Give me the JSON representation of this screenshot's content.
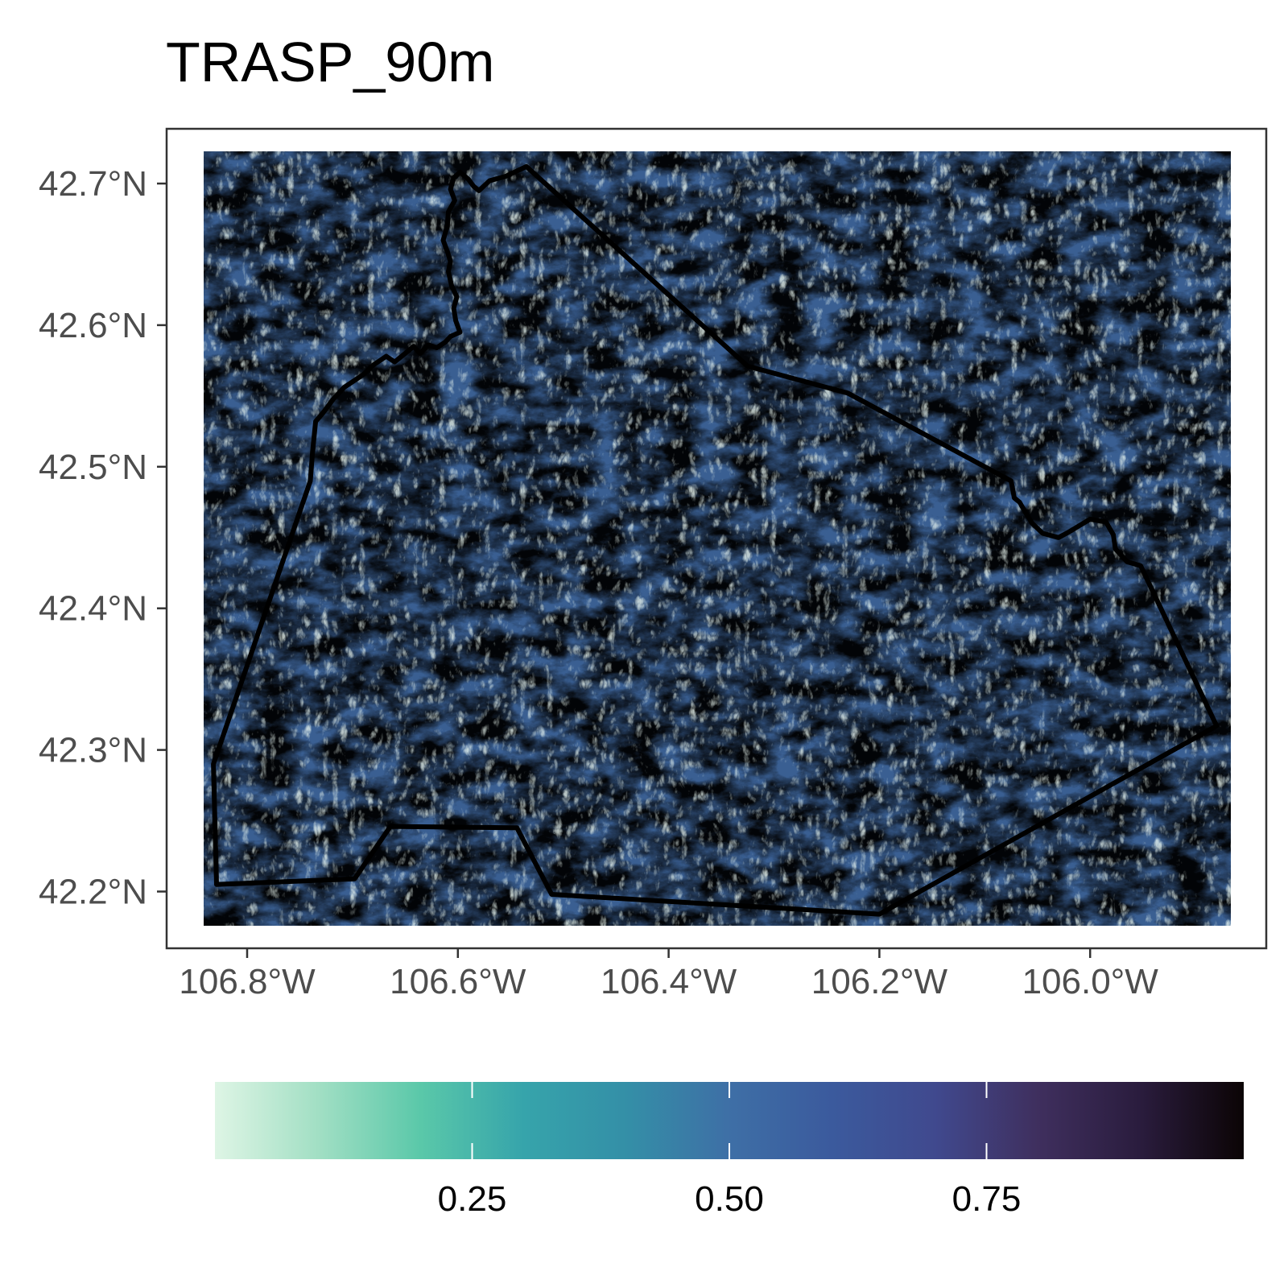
{
  "title": "TRASP_90m",
  "map": {
    "x_ticks": [
      {
        "value": -106.8,
        "label": "106.8°W"
      },
      {
        "value": -106.6,
        "label": "106.6°W"
      },
      {
        "value": -106.4,
        "label": "106.4°W"
      },
      {
        "value": -106.2,
        "label": "106.2°W"
      },
      {
        "value": -106.0,
        "label": "106.0°W"
      }
    ],
    "y_ticks": [
      {
        "value": 42.7,
        "label": "42.7°N"
      },
      {
        "value": 42.6,
        "label": "42.6°N"
      },
      {
        "value": 42.5,
        "label": "42.5°N"
      },
      {
        "value": 42.4,
        "label": "42.4°N"
      },
      {
        "value": 42.3,
        "label": "42.3°N"
      },
      {
        "value": 42.2,
        "label": "42.2°N"
      }
    ],
    "lon_range": [
      -106.84,
      -105.87
    ],
    "lat_range": [
      42.18,
      42.725
    ],
    "boundary_color": "#000000",
    "boundary": [
      [
        -106.535,
        42.712
      ],
      [
        -106.555,
        42.705
      ],
      [
        -106.57,
        42.702
      ],
      [
        -106.58,
        42.695
      ],
      [
        -106.585,
        42.698
      ],
      [
        -106.59,
        42.703
      ],
      [
        -106.598,
        42.708
      ],
      [
        -106.604,
        42.704
      ],
      [
        -106.607,
        42.696
      ],
      [
        -106.603,
        42.688
      ],
      [
        -106.609,
        42.68
      ],
      [
        -106.61,
        42.67
      ],
      [
        -106.614,
        42.66
      ],
      [
        -106.61,
        42.652
      ],
      [
        -106.607,
        42.645
      ],
      [
        -106.609,
        42.638
      ],
      [
        -106.606,
        42.628
      ],
      [
        -106.601,
        42.62
      ],
      [
        -106.604,
        42.612
      ],
      [
        -106.602,
        42.603
      ],
      [
        -106.598,
        42.595
      ],
      [
        -106.607,
        42.592
      ],
      [
        -106.612,
        42.588
      ],
      [
        -106.62,
        42.584
      ],
      [
        -106.628,
        42.586
      ],
      [
        -106.636,
        42.58
      ],
      [
        -106.642,
        42.585
      ],
      [
        -106.65,
        42.58
      ],
      [
        -106.66,
        42.574
      ],
      [
        -106.668,
        42.578
      ],
      [
        -106.68,
        42.572
      ],
      [
        -106.69,
        42.565
      ],
      [
        -106.7,
        42.56
      ],
      [
        -106.708,
        42.556
      ],
      [
        -106.718,
        42.548
      ],
      [
        -106.728,
        42.538
      ],
      [
        -106.735,
        42.532
      ],
      [
        -106.738,
        42.51
      ],
      [
        -106.74,
        42.49
      ],
      [
        -106.832,
        42.29
      ],
      [
        -106.829,
        42.205
      ],
      [
        -106.698,
        42.209
      ],
      [
        -106.664,
        42.246
      ],
      [
        -106.544,
        42.245
      ],
      [
        -106.511,
        42.198
      ],
      [
        -106.2,
        42.184
      ],
      [
        -105.88,
        42.317
      ],
      [
        -105.952,
        42.43
      ],
      [
        -105.965,
        42.433
      ],
      [
        -105.976,
        42.442
      ],
      [
        -105.978,
        42.452
      ],
      [
        -105.985,
        42.461
      ],
      [
        -106.0,
        42.463
      ],
      [
        -106.02,
        42.454
      ],
      [
        -106.03,
        42.45
      ],
      [
        -106.045,
        42.453
      ],
      [
        -106.055,
        42.46
      ],
      [
        -106.06,
        42.466
      ],
      [
        -106.067,
        42.475
      ],
      [
        -106.072,
        42.478
      ],
      [
        -106.075,
        42.49
      ],
      [
        -106.23,
        42.552
      ],
      [
        -106.325,
        42.571
      ],
      [
        -106.535,
        42.712
      ]
    ]
  },
  "legend": {
    "ticks": [
      {
        "value": 0.25,
        "label": "0.25"
      },
      {
        "value": 0.5,
        "label": "0.50"
      },
      {
        "value": 0.75,
        "label": "0.75"
      }
    ],
    "range": [
      0.0,
      1.0
    ],
    "colors": [
      "#def5e5",
      "#a2dfc4",
      "#5ac8a9",
      "#36a4ab",
      "#348fa7",
      "#3e6fa6",
      "#3b5a9d",
      "#40498e",
      "#3f2f5e",
      "#2a1c3d",
      "#0b0405"
    ]
  }
}
